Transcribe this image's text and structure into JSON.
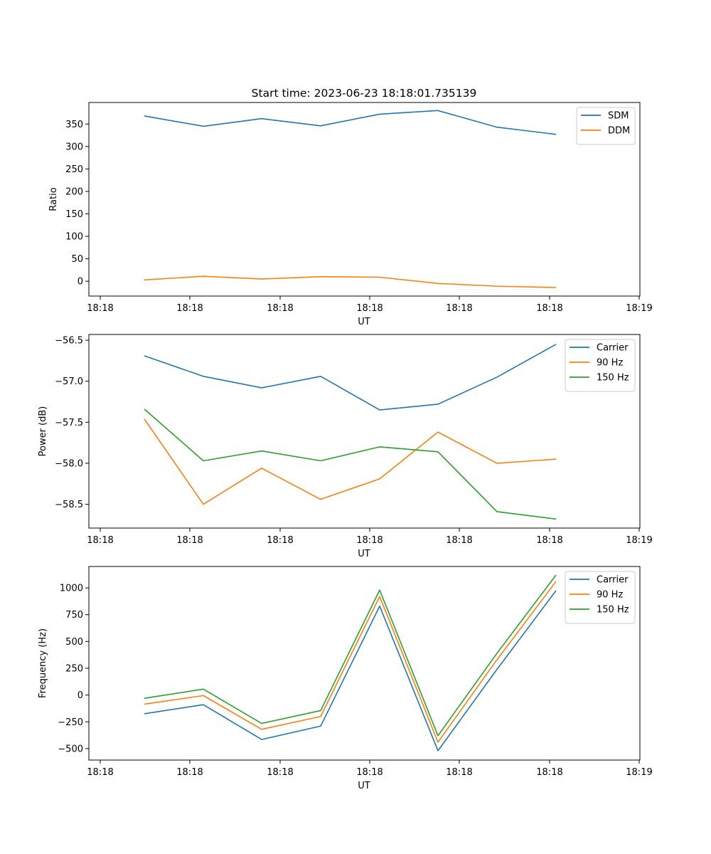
{
  "figure_title": "Start time: 2023-06-23 18:18:01.735139",
  "colors": {
    "c0": "#1f77b4",
    "c1": "#ff7f0e",
    "c2": "#2ca02c"
  },
  "chart_data": [
    {
      "type": "line",
      "title": "Start time: 2023-06-23 18:18:01.735139",
      "xlabel": "UT",
      "ylabel": "Ratio",
      "x_tick_labels": [
        "18:18",
        "18:18",
        "18:18",
        "18:18",
        "18:18",
        "18:18",
        "18:19"
      ],
      "y_ticks": [
        0,
        50,
        100,
        150,
        200,
        250,
        300,
        350
      ],
      "ylim": [
        -33,
        398
      ],
      "legend_position": "upper right",
      "grid": false,
      "series": [
        {
          "name": "SDM",
          "color": "#1f77b4",
          "values": [
            368,
            345,
            362,
            346,
            372,
            380,
            343,
            327
          ]
        },
        {
          "name": "DDM",
          "color": "#ff7f0e",
          "values": [
            3,
            11,
            5,
            10,
            9,
            -5,
            -11,
            -14
          ]
        }
      ]
    },
    {
      "type": "line",
      "title": "",
      "xlabel": "UT",
      "ylabel": "Power (dB)",
      "x_tick_labels": [
        "18:18",
        "18:18",
        "18:18",
        "18:18",
        "18:18",
        "18:18",
        "18:19"
      ],
      "y_ticks": [
        -56.5,
        -57.0,
        -57.5,
        -58.0,
        -58.5
      ],
      "y_tick_labels": [
        "−56.5",
        "−57.0",
        "−57.5",
        "−58.0",
        "−58.5"
      ],
      "ylim": [
        -58.79,
        -56.43
      ],
      "legend_position": "upper right",
      "grid": false,
      "series": [
        {
          "name": "Carrier",
          "color": "#1f77b4",
          "values": [
            -56.69,
            -56.94,
            -57.08,
            -56.94,
            -57.35,
            -57.28,
            -56.95,
            -56.55
          ]
        },
        {
          "name": "90 Hz",
          "color": "#ff7f0e",
          "values": [
            -57.46,
            -58.5,
            -58.06,
            -58.44,
            -58.19,
            -57.62,
            -58.0,
            -57.95
          ]
        },
        {
          "name": "150 Hz",
          "color": "#2ca02c",
          "values": [
            -57.34,
            -57.97,
            -57.85,
            -57.97,
            -57.8,
            -57.86,
            -58.59,
            -58.68
          ]
        }
      ]
    },
    {
      "type": "line",
      "title": "",
      "xlabel": "UT",
      "ylabel": "Frequency (Hz)",
      "x_tick_labels": [
        "18:18",
        "18:18",
        "18:18",
        "18:18",
        "18:18",
        "18:18",
        "18:19"
      ],
      "y_ticks": [
        -500,
        -250,
        0,
        250,
        500,
        750,
        1000
      ],
      "y_tick_labels": [
        "−500",
        "−250",
        "0",
        "250",
        "500",
        "750",
        "1000"
      ],
      "ylim": [
        -607,
        1200
      ],
      "legend_position": "upper right",
      "grid": false,
      "series": [
        {
          "name": "Carrier",
          "color": "#1f77b4",
          "values": [
            -175,
            -90,
            -415,
            -290,
            830,
            -520,
            240,
            975
          ]
        },
        {
          "name": "90 Hz",
          "color": "#ff7f0e",
          "values": [
            -85,
            -5,
            -320,
            -200,
            920,
            -440,
            330,
            1060
          ]
        },
        {
          "name": "150 Hz",
          "color": "#2ca02c",
          "values": [
            -30,
            55,
            -265,
            -145,
            980,
            -380,
            390,
            1120
          ]
        }
      ]
    }
  ]
}
